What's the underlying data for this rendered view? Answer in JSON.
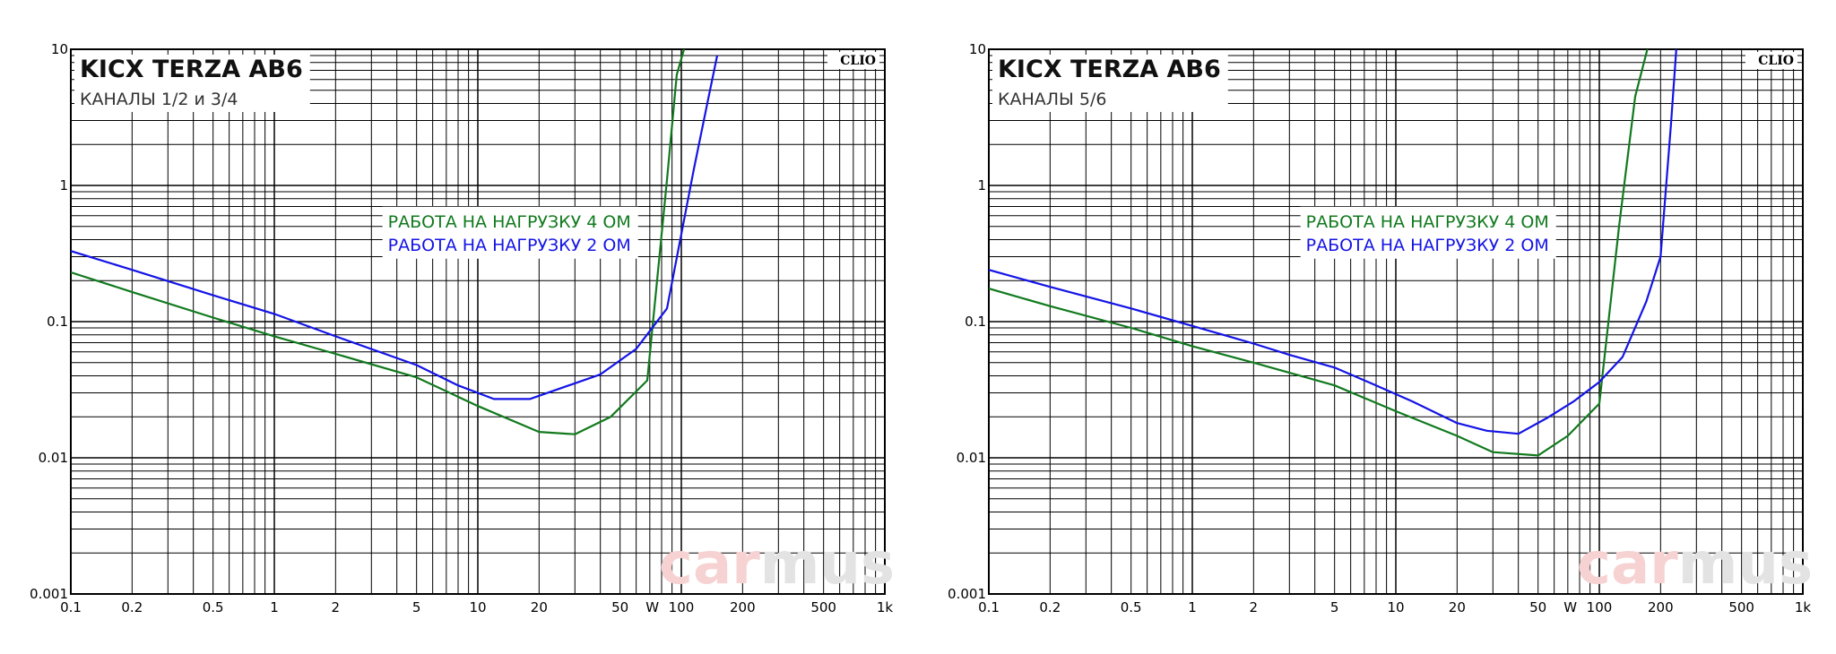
{
  "colors": {
    "series_4ohm": "#117a1e",
    "series_2ohm": "#1414e6",
    "grid": "#000000",
    "watermark_red": "#f7d2d2",
    "watermark_grey": "#e3e3e3"
  },
  "chart_data": [
    {
      "type": "line",
      "title": "KICX TERZA AB6",
      "subtitle": "КАНАЛЫ 1/2 и 3/4",
      "brand": "CLIO",
      "watermark": [
        "car",
        "mus"
      ],
      "x_scale": "log",
      "y_scale": "log",
      "xlim": [
        0.1,
        1000
      ],
      "ylim": [
        0.001,
        10
      ],
      "grid": true,
      "legend_position": "center",
      "x_ticks": [
        {
          "v": 0.1,
          "label": "0.1"
        },
        {
          "v": 0.2,
          "label": "0.2"
        },
        {
          "v": 0.5,
          "label": "0.5"
        },
        {
          "v": 1,
          "label": "1"
        },
        {
          "v": 2,
          "label": "2"
        },
        {
          "v": 5,
          "label": "5"
        },
        {
          "v": 10,
          "label": "10"
        },
        {
          "v": 20,
          "label": "20"
        },
        {
          "v": 50,
          "label": "50"
        },
        {
          "v": 72,
          "label": "W"
        },
        {
          "v": 100,
          "label": "100"
        },
        {
          "v": 200,
          "label": "200"
        },
        {
          "v": 500,
          "label": "500"
        },
        {
          "v": 1000,
          "label": "1k"
        }
      ],
      "y_ticks": [
        {
          "v": 10,
          "label": "10"
        },
        {
          "v": 1,
          "label": "1"
        },
        {
          "v": 0.1,
          "label": "0.1"
        },
        {
          "v": 0.01,
          "label": "0.01"
        },
        {
          "v": 0.001,
          "label": "0.001"
        }
      ],
      "series": [
        {
          "name": "РАБОТА НА НАГРУЗКУ 4 ОМ",
          "color": "#117a1e",
          "x": [
            0.1,
            0.2,
            0.5,
            1,
            2,
            5,
            10,
            20,
            30,
            45,
            68,
            85,
            95,
            105
          ],
          "y": [
            0.23,
            0.165,
            0.107,
            0.078,
            0.058,
            0.039,
            0.024,
            0.0155,
            0.0149,
            0.02,
            0.037,
            1.1,
            6.5,
            11
          ]
        },
        {
          "name": "РАБОТА НА НАГРУЗКУ 2 ОМ",
          "color": "#1414e6",
          "x": [
            0.1,
            0.2,
            0.5,
            1,
            2,
            5,
            8,
            12,
            18,
            28,
            40,
            60,
            85,
            115,
            135,
            150
          ],
          "y": [
            0.33,
            0.24,
            0.156,
            0.114,
            0.078,
            0.048,
            0.034,
            0.027,
            0.027,
            0.034,
            0.041,
            0.063,
            0.125,
            1.3,
            4.2,
            9
          ]
        }
      ]
    },
    {
      "type": "line",
      "title": "KICX TERZA AB6",
      "subtitle": "КАНАЛЫ 5/6",
      "brand": "CLIO",
      "watermark": [
        "car",
        "mus"
      ],
      "x_scale": "log",
      "y_scale": "log",
      "xlim": [
        0.1,
        1000
      ],
      "ylim": [
        0.001,
        10
      ],
      "grid": true,
      "legend_position": "center",
      "x_ticks": [
        {
          "v": 0.1,
          "label": "0.1"
        },
        {
          "v": 0.2,
          "label": "0.2"
        },
        {
          "v": 0.5,
          "label": "0.5"
        },
        {
          "v": 1,
          "label": "1"
        },
        {
          "v": 2,
          "label": "2"
        },
        {
          "v": 5,
          "label": "5"
        },
        {
          "v": 10,
          "label": "10"
        },
        {
          "v": 20,
          "label": "20"
        },
        {
          "v": 50,
          "label": "50"
        },
        {
          "v": 72,
          "label": "W"
        },
        {
          "v": 100,
          "label": "100"
        },
        {
          "v": 200,
          "label": "200"
        },
        {
          "v": 500,
          "label": "500"
        },
        {
          "v": 1000,
          "label": "1k"
        }
      ],
      "y_ticks": [
        {
          "v": 10,
          "label": "10"
        },
        {
          "v": 1,
          "label": "1"
        },
        {
          "v": 0.1,
          "label": "0.1"
        },
        {
          "v": 0.01,
          "label": "0.01"
        },
        {
          "v": 0.001,
          "label": "0.001"
        }
      ],
      "series": [
        {
          "name": "РАБОТА НА НАГРУЗКУ 4 ОМ",
          "color": "#117a1e",
          "x": [
            0.1,
            0.2,
            0.5,
            1,
            2,
            5,
            10,
            20,
            30,
            50,
            70,
            100,
            125,
            150,
            175
          ],
          "y": [
            0.175,
            0.13,
            0.09,
            0.066,
            0.05,
            0.034,
            0.022,
            0.0145,
            0.011,
            0.0104,
            0.0145,
            0.025,
            0.5,
            4.5,
            11
          ]
        },
        {
          "name": "РАБОТА НА НАГРУЗКУ 2 ОМ",
          "color": "#1414e6",
          "x": [
            0.1,
            0.2,
            0.5,
            1,
            2,
            3,
            5,
            8,
            12,
            20,
            28,
            40,
            55,
            75,
            100,
            130,
            170,
            200,
            225,
            240
          ],
          "y": [
            0.24,
            0.18,
            0.125,
            0.093,
            0.069,
            0.057,
            0.046,
            0.034,
            0.026,
            0.018,
            0.0158,
            0.015,
            0.0195,
            0.026,
            0.036,
            0.055,
            0.14,
            0.3,
            2.8,
            11
          ]
        }
      ]
    }
  ]
}
